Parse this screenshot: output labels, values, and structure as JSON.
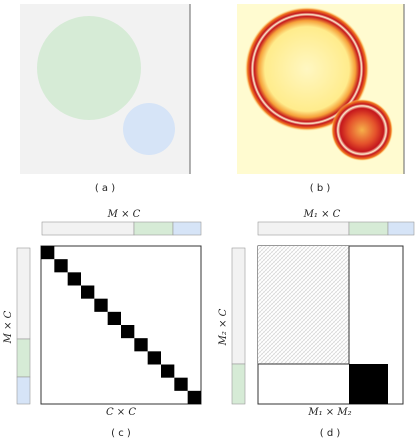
{
  "panels": {
    "a": {
      "caption": "( a )"
    },
    "b": {
      "caption": "( b )"
    },
    "c": {
      "caption": "( c )",
      "top_label": "M × C",
      "side_label": "M × C",
      "bottom_label": "C × C"
    },
    "d": {
      "caption": "( d )",
      "top_label": "M₁ × C",
      "side_label": "M₂ × C",
      "bottom_label": "M₁ × M₂"
    }
  },
  "colors": {
    "background_gray": "#f2f2f2",
    "green_fill": "#d6ebd6",
    "blue_fill": "#d6e4f7",
    "heat_low": "#fffbd0",
    "heat_mid": "#f28a24",
    "heat_high": "#b3001e",
    "diag_black": "#000000"
  },
  "panel_c_diagonal_blocks": 12
}
